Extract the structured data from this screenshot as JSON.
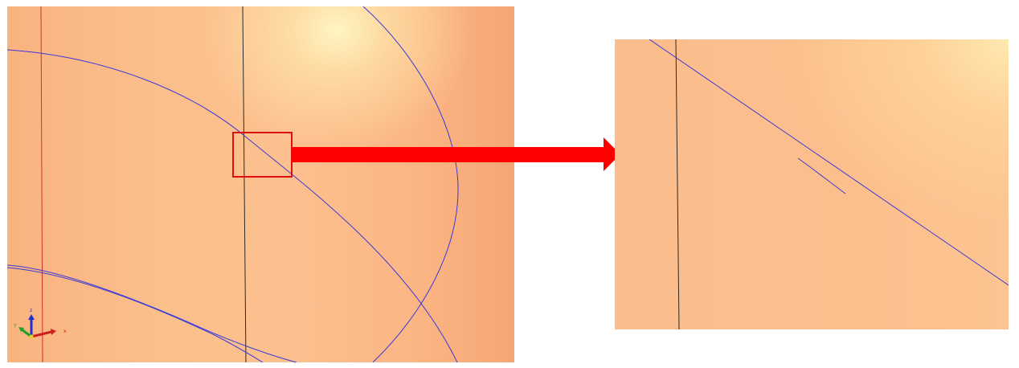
{
  "axes": {
    "x_label": "x",
    "y_label": "y",
    "z_label": "z"
  },
  "colors": {
    "curve": "#3a3ad8",
    "vertical_line": "#2a2a2a",
    "left_edge_line": "#d03030",
    "highlight": "#e01010",
    "arrow": "#ff0000",
    "axis_x": "#cc2020",
    "axis_y": "#20a020",
    "axis_z": "#2030cc"
  },
  "icons": {
    "triad": "xyz-axis-triad-icon",
    "arrow": "zoom-arrow-icon"
  }
}
